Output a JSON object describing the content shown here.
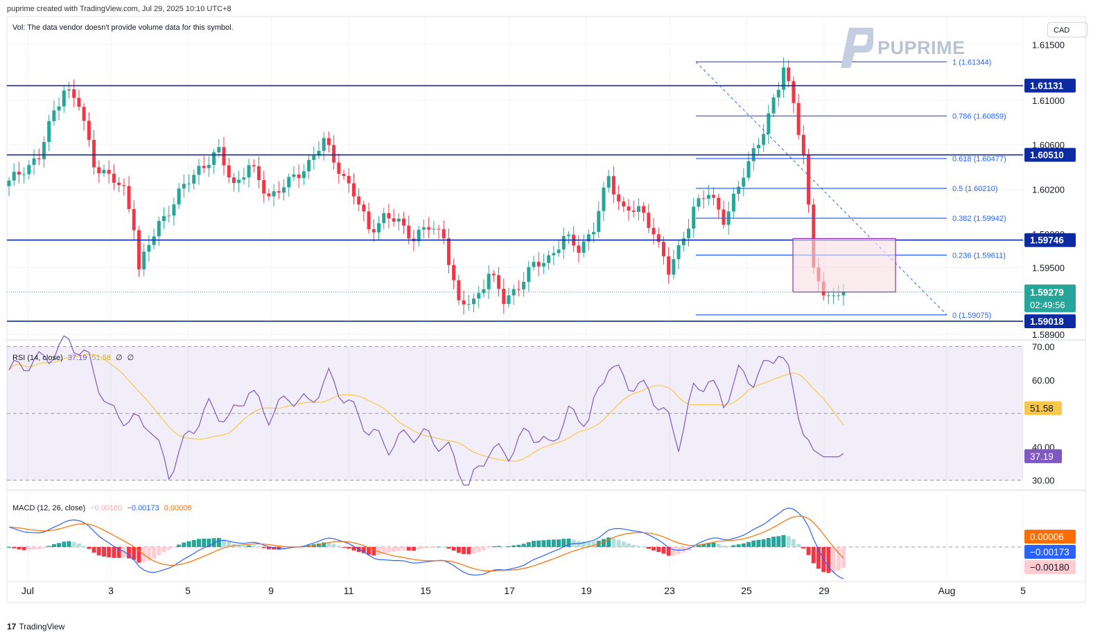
{
  "header": {
    "created_by": "puprime created with TradingView.com, Jul 29, 2025 10:10 UTC+8",
    "volume_note": "Vol: The data vendor doesn't provide volume data for this symbol.",
    "currency": "CAD",
    "brand": "PUPRIME",
    "footer": "TradingView",
    "footer_mark": "17"
  },
  "colors": {
    "up": "#26a69a",
    "down": "#f23645",
    "level_line": "#0c2ba3",
    "fib_line": "#2962ff",
    "rsi": "#7e57c2",
    "rsi_ma": "#f7c849",
    "macd": "#2962ff",
    "signal": "#ff6d00",
    "box_border": "#9c27b0",
    "box_fill": "#f7dde2"
  },
  "chart_data": [
    {
      "type": "candlestick",
      "symbol_currency": "CAD",
      "ylim": [
        1.5885,
        1.6175
      ],
      "x_ticks": [
        "Jul",
        "3",
        "5",
        "9",
        "11",
        "15",
        "17",
        "19",
        "23",
        "25",
        "29",
        "Aug",
        "5"
      ],
      "y_ticks": [
        "1.61500",
        "1.61000",
        "1.60600",
        "1.60200",
        "1.59800",
        "1.59500",
        "1.58900"
      ],
      "last_price": "1.59279",
      "countdown": "02:49:56",
      "horizontal_levels": [
        "1.61131",
        "1.60510",
        "1.59746",
        "1.59018"
      ],
      "fibonacci": {
        "from": 1.59075,
        "to": 1.61344,
        "levels": [
          {
            "ratio": "1",
            "value": "1.61344"
          },
          {
            "ratio": "0.786",
            "value": "1.60859"
          },
          {
            "ratio": "0.618",
            "value": "1.60477"
          },
          {
            "ratio": "0.5",
            "value": "1.60210"
          },
          {
            "ratio": "0.382",
            "value": "1.59942"
          },
          {
            "ratio": "0.236",
            "value": "1.59611"
          },
          {
            "ratio": "0",
            "value": "1.59075"
          }
        ]
      },
      "zone": {
        "top": 1.5976,
        "bottom": 1.5928
      }
    },
    {
      "type": "line",
      "title": "RSI (14, close)",
      "legend_values": [
        "37.19",
        "51.58",
        "∅",
        "∅"
      ],
      "ylim": [
        27,
        72
      ],
      "y_ticks": [
        "70.00",
        "60.00",
        "40.00",
        "30.00"
      ],
      "band": [
        30,
        70
      ],
      "mid": 50,
      "series": [
        {
          "name": "RSI",
          "value": "37.19"
        },
        {
          "name": "RSI MA",
          "value": "51.58"
        }
      ]
    },
    {
      "type": "line",
      "title": "MACD (12, 26, close)",
      "legend_values": [
        "−0.00180",
        "−0.00173",
        "0.00006"
      ],
      "price_labels": [
        "0.00006",
        "−0.00173",
        "−0.00180"
      ],
      "series": [
        {
          "name": "Histogram"
        },
        {
          "name": "MACD"
        },
        {
          "name": "Signal"
        }
      ]
    }
  ]
}
